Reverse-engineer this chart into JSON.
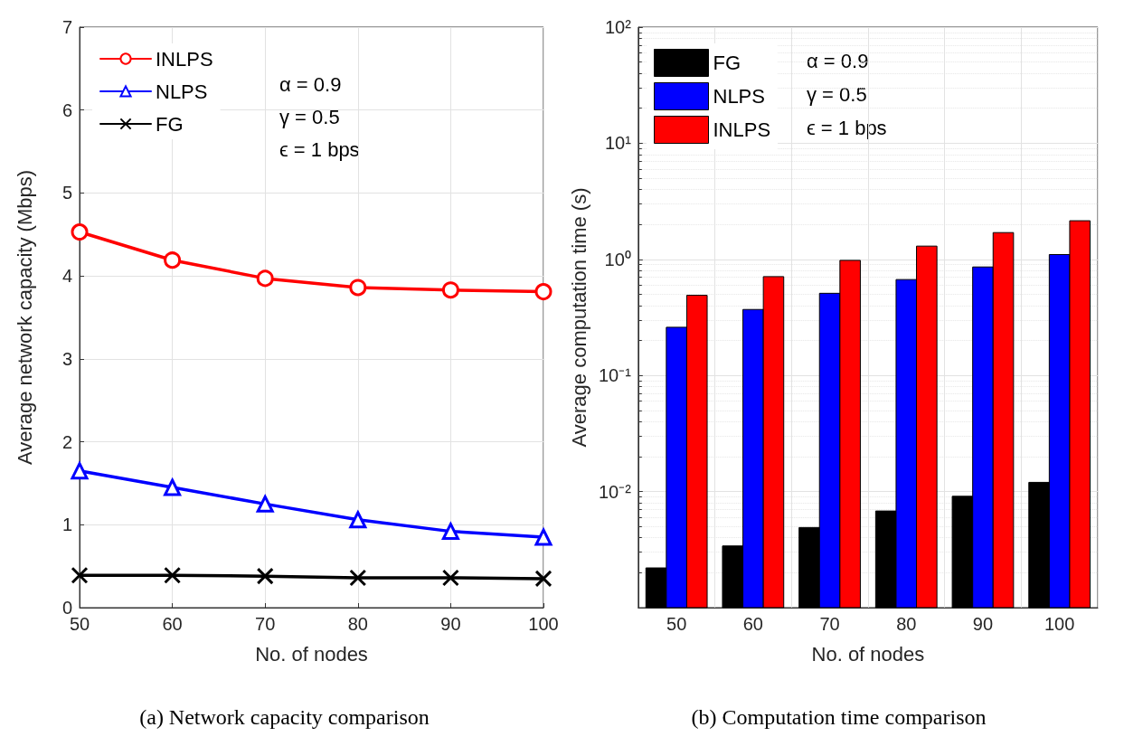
{
  "chart_data": [
    {
      "type": "line",
      "title": "(a) Network capacity comparison",
      "xlabel": "No. of nodes",
      "ylabel": "Average network capacity (Mbps)",
      "x": [
        50,
        60,
        70,
        80,
        90,
        100
      ],
      "xlim": [
        50,
        100
      ],
      "xticks": [
        50,
        60,
        70,
        80,
        90,
        100
      ],
      "ylim": [
        0,
        7
      ],
      "yticks": [
        0,
        1,
        2,
        3,
        4,
        5,
        6,
        7
      ],
      "grid": true,
      "legend": "top left",
      "line_style": "solid",
      "series": [
        {
          "name": "INLPS",
          "color": "#ff0000",
          "marker": "circle",
          "values": [
            4.53,
            4.19,
            3.97,
            3.86,
            3.83,
            3.81
          ]
        },
        {
          "name": "NLPS",
          "color": "#0000ff",
          "marker": "triangle",
          "values": [
            1.65,
            1.45,
            1.25,
            1.06,
            0.92,
            0.85
          ]
        },
        {
          "name": "FG",
          "color": "#000000",
          "marker": "cross",
          "values": [
            0.39,
            0.39,
            0.38,
            0.36,
            0.36,
            0.35
          ]
        }
      ],
      "annotations": [
        "α = 0.9",
        "γ = 0.5",
        "ϵ = 1 bps"
      ]
    },
    {
      "type": "bar",
      "title": "(b) Computation time comparison",
      "xlabel": "No. of nodes",
      "ylabel": "Average computation time (s)",
      "categories": [
        "50",
        "60",
        "70",
        "80",
        "90",
        "100"
      ],
      "log": "y",
      "ylim": [
        0.001,
        100
      ],
      "yticks": [
        {
          "value": 0.001,
          "label": null
        },
        {
          "value": 0.01,
          "label": "10⁻²"
        },
        {
          "value": 0.1,
          "label": "10⁻¹"
        },
        {
          "value": 1,
          "label": "10⁰"
        },
        {
          "value": 10,
          "label": "10¹"
        },
        {
          "value": 100,
          "label": "10²"
        }
      ],
      "grid": true,
      "legend": "top left",
      "series": [
        {
          "name": "FG",
          "color": "#000000",
          "values": [
            0.0022,
            0.0034,
            0.0049,
            0.0068,
            0.0091,
            0.012
          ]
        },
        {
          "name": "NLPS",
          "color": "#0000ff",
          "values": [
            0.26,
            0.37,
            0.51,
            0.67,
            0.86,
            1.1
          ]
        },
        {
          "name": "INLPS",
          "color": "#ff0000",
          "values": [
            0.49,
            0.71,
            0.98,
            1.3,
            1.7,
            2.15
          ]
        }
      ],
      "annotations": [
        "α = 0.9",
        "γ = 0.5",
        "ϵ = 1 bps"
      ]
    }
  ]
}
